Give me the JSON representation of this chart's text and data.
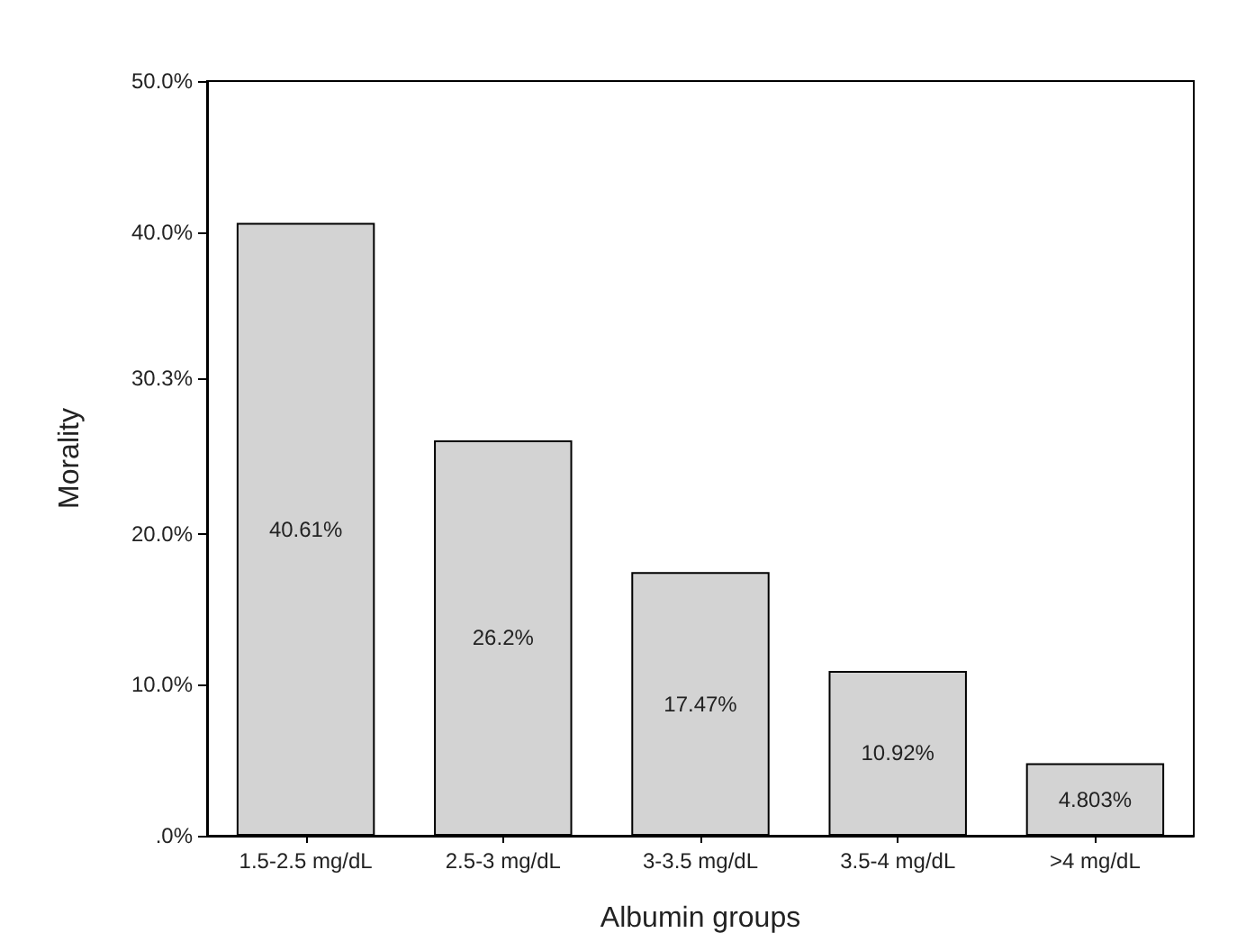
{
  "chart_data": {
    "type": "bar",
    "xlabel": "Albumin groups",
    "ylabel": "Morality",
    "categories": [
      "1.5-2.5 mg/dL",
      "2.5-3 mg/dL",
      "3-3.5 mg/dL",
      "3.5-4 mg/dL",
      ">4 mg/dL"
    ],
    "values": [
      40.61,
      26.2,
      17.47,
      10.92,
      4.803
    ],
    "value_labels": [
      "40.61%",
      "26.2%",
      "17.47%",
      "10.92%",
      "4.803%"
    ],
    "color": "#d3d3d3",
    "ylim": [
      0,
      50
    ],
    "yticks": [
      {
        "value": 0,
        "label": ".0%"
      },
      {
        "value": 10,
        "label": "10.0%"
      },
      {
        "value": 20,
        "label": "20.0%"
      },
      {
        "value": 30.3,
        "label": "30.3%"
      },
      {
        "value": 40,
        "label": "40.0%"
      },
      {
        "value": 50,
        "label": "50.0%"
      }
    ],
    "grid": false
  }
}
